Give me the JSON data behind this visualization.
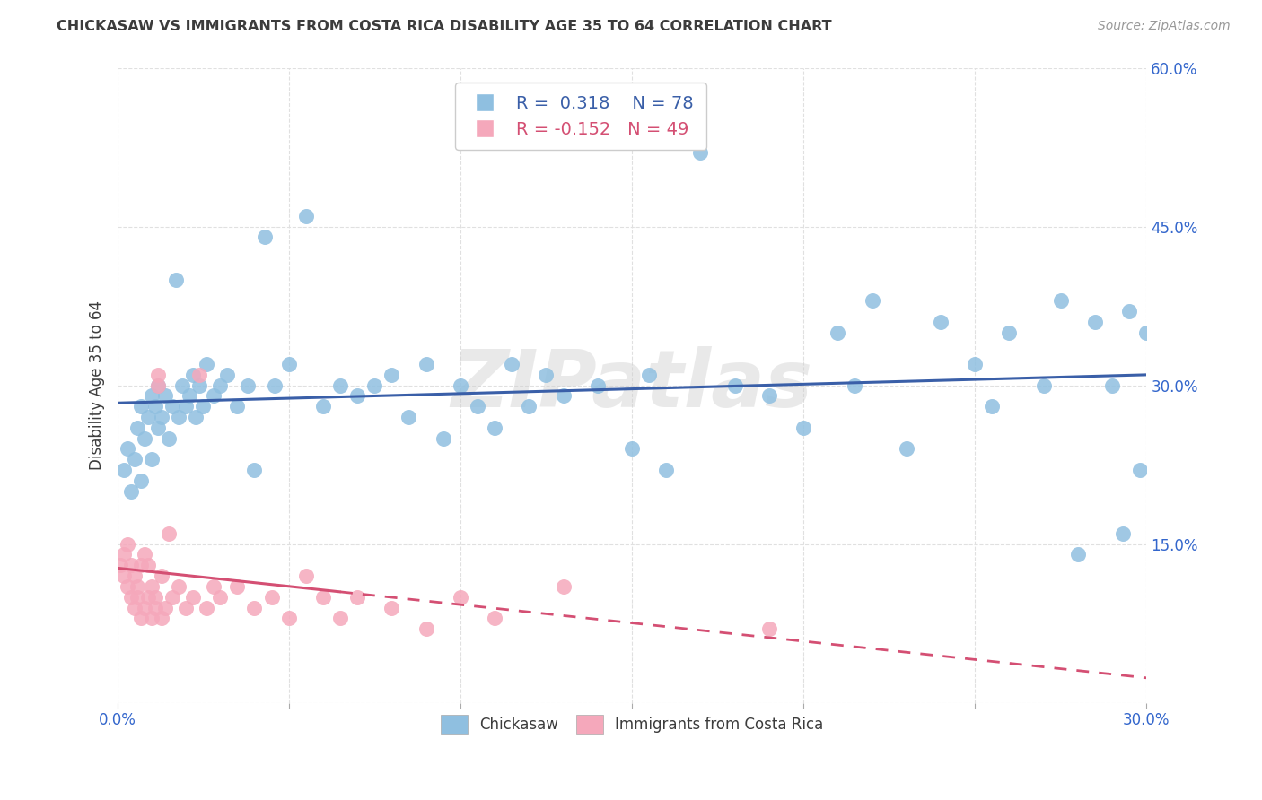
{
  "title": "CHICKASAW VS IMMIGRANTS FROM COSTA RICA DISABILITY AGE 35 TO 64 CORRELATION CHART",
  "source": "Source: ZipAtlas.com",
  "ylabel_label": "Disability Age 35 to 64",
  "legend_label_1": "Chickasaw",
  "legend_label_2": "Immigrants from Costa Rica",
  "chickasaw_R": 0.318,
  "chickasaw_N": 78,
  "costarica_R": -0.152,
  "costarica_N": 49,
  "blue_scatter_color": "#8fbfe0",
  "pink_scatter_color": "#f5a8bb",
  "blue_line_color": "#3a5fa8",
  "pink_line_color": "#d44f73",
  "text_color": "#3c3c3c",
  "axis_label_color": "#3366cc",
  "grid_color": "#e0e0e0",
  "watermark": "ZIPatlas",
  "watermark_color": "#d0d0d0",
  "xlim": [
    0.0,
    0.3
  ],
  "ylim": [
    0.0,
    0.6
  ],
  "x_ticks": [
    0.0,
    0.05,
    0.1,
    0.15,
    0.2,
    0.25,
    0.3
  ],
  "y_ticks": [
    0.0,
    0.15,
    0.3,
    0.45,
    0.6
  ],
  "blue_x": [
    0.002,
    0.003,
    0.004,
    0.005,
    0.006,
    0.007,
    0.007,
    0.008,
    0.009,
    0.01,
    0.01,
    0.011,
    0.012,
    0.012,
    0.013,
    0.014,
    0.015,
    0.016,
    0.017,
    0.018,
    0.019,
    0.02,
    0.021,
    0.022,
    0.023,
    0.024,
    0.025,
    0.026,
    0.028,
    0.03,
    0.032,
    0.035,
    0.038,
    0.04,
    0.043,
    0.046,
    0.05,
    0.055,
    0.06,
    0.065,
    0.07,
    0.075,
    0.08,
    0.085,
    0.09,
    0.095,
    0.1,
    0.105,
    0.11,
    0.115,
    0.12,
    0.125,
    0.13,
    0.14,
    0.15,
    0.155,
    0.16,
    0.17,
    0.18,
    0.19,
    0.2,
    0.21,
    0.215,
    0.22,
    0.23,
    0.24,
    0.25,
    0.255,
    0.26,
    0.27,
    0.275,
    0.28,
    0.285,
    0.29,
    0.293,
    0.295,
    0.298,
    0.3
  ],
  "blue_y": [
    0.22,
    0.24,
    0.2,
    0.23,
    0.26,
    0.21,
    0.28,
    0.25,
    0.27,
    0.23,
    0.29,
    0.28,
    0.26,
    0.3,
    0.27,
    0.29,
    0.25,
    0.28,
    0.4,
    0.27,
    0.3,
    0.28,
    0.29,
    0.31,
    0.27,
    0.3,
    0.28,
    0.32,
    0.29,
    0.3,
    0.31,
    0.28,
    0.3,
    0.22,
    0.44,
    0.3,
    0.32,
    0.46,
    0.28,
    0.3,
    0.29,
    0.3,
    0.31,
    0.27,
    0.32,
    0.25,
    0.3,
    0.28,
    0.26,
    0.32,
    0.28,
    0.31,
    0.29,
    0.3,
    0.24,
    0.31,
    0.22,
    0.52,
    0.3,
    0.29,
    0.26,
    0.35,
    0.3,
    0.38,
    0.24,
    0.36,
    0.32,
    0.28,
    0.35,
    0.3,
    0.38,
    0.14,
    0.36,
    0.3,
    0.16,
    0.37,
    0.22,
    0.35
  ],
  "pink_x": [
    0.001,
    0.002,
    0.002,
    0.003,
    0.003,
    0.004,
    0.004,
    0.005,
    0.005,
    0.006,
    0.006,
    0.007,
    0.007,
    0.008,
    0.008,
    0.009,
    0.009,
    0.01,
    0.01,
    0.011,
    0.011,
    0.012,
    0.012,
    0.013,
    0.013,
    0.014,
    0.015,
    0.016,
    0.018,
    0.02,
    0.022,
    0.024,
    0.026,
    0.028,
    0.03,
    0.035,
    0.04,
    0.045,
    0.05,
    0.055,
    0.06,
    0.065,
    0.07,
    0.08,
    0.09,
    0.1,
    0.11,
    0.13,
    0.19
  ],
  "pink_y": [
    0.13,
    0.12,
    0.14,
    0.11,
    0.15,
    0.1,
    0.13,
    0.09,
    0.12,
    0.1,
    0.11,
    0.08,
    0.13,
    0.09,
    0.14,
    0.1,
    0.13,
    0.08,
    0.11,
    0.1,
    0.09,
    0.31,
    0.3,
    0.08,
    0.12,
    0.09,
    0.16,
    0.1,
    0.11,
    0.09,
    0.1,
    0.31,
    0.09,
    0.11,
    0.1,
    0.11,
    0.09,
    0.1,
    0.08,
    0.12,
    0.1,
    0.08,
    0.1,
    0.09,
    0.07,
    0.1,
    0.08,
    0.11,
    0.07
  ]
}
